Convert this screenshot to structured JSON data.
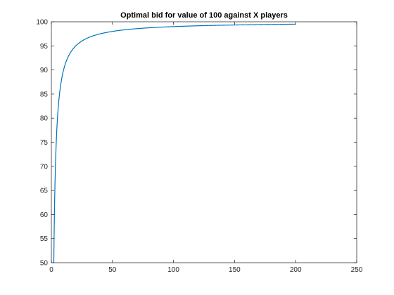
{
  "chart_data": {
    "type": "line",
    "title": "Optimal bid for value of 100 against X players",
    "xlabel": "",
    "ylabel": "",
    "xlim": [
      0,
      250
    ],
    "ylim": [
      50,
      100
    ],
    "xticks": [
      0,
      50,
      100,
      150,
      200,
      250
    ],
    "yticks": [
      50,
      55,
      60,
      65,
      70,
      75,
      80,
      85,
      90,
      95,
      100
    ],
    "grid": false,
    "legend": "none",
    "series": [
      {
        "color": "#0072bd",
        "formula": "y = 100 * (x - 1) / x",
        "x_range": [
          2,
          200
        ]
      }
    ]
  }
}
